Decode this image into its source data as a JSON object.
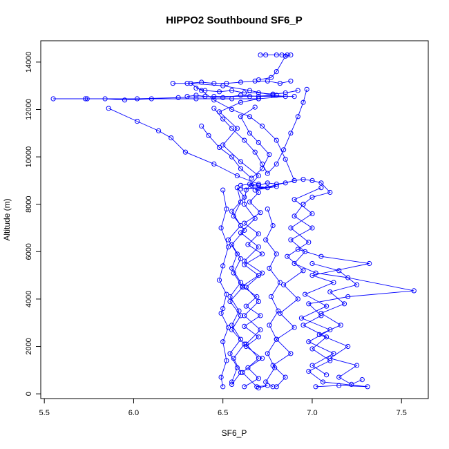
{
  "chart_data": {
    "type": "scatter",
    "title": "HIPPO2 Southbound SF6_P",
    "xlabel": "SF6_P",
    "ylabel": "Altitude (m)",
    "xlim": [
      5.48,
      7.65
    ],
    "ylim": [
      -200,
      14900
    ],
    "x_ticks": [
      5.5,
      6.0,
      6.5,
      7.0,
      7.5
    ],
    "y_ticks": [
      0,
      2000,
      4000,
      6000,
      8000,
      10000,
      12000,
      14000
    ],
    "x_tick_labels": [
      "5.5",
      "6.0",
      "6.5",
      "7.0",
      "7.5"
    ],
    "y_tick_labels": [
      "0",
      "2000",
      "4000",
      "6000",
      "8000",
      "10000",
      "12000",
      "14000"
    ],
    "grid": false,
    "legend": "none",
    "series": [
      {
        "color": "#0000ff",
        "marker": "open-circle",
        "connected": true,
        "points": [
          [
            6.62,
            300
          ],
          [
            6.7,
            650
          ],
          [
            6.64,
            1100
          ],
          [
            6.72,
            1500
          ],
          [
            6.63,
            2000
          ],
          [
            6.7,
            2400
          ],
          [
            6.62,
            2850
          ],
          [
            6.71,
            3300
          ],
          [
            6.63,
            3700
          ],
          [
            6.69,
            4100
          ],
          [
            6.61,
            4550
          ],
          [
            6.7,
            5000
          ],
          [
            6.62,
            5450
          ],
          [
            6.72,
            5900
          ],
          [
            6.64,
            6300
          ],
          [
            6.7,
            6750
          ],
          [
            6.62,
            7200
          ],
          [
            6.71,
            7650
          ],
          [
            6.65,
            8100
          ],
          [
            6.7,
            8500
          ],
          [
            6.66,
            8800
          ],
          [
            6.75,
            8700
          ],
          [
            6.6,
            8650
          ],
          [
            6.8,
            8750
          ],
          [
            6.68,
            8600
          ],
          [
            6.9,
            9000
          ],
          [
            6.85,
            9900
          ],
          [
            6.8,
            10700
          ],
          [
            6.72,
            11300
          ],
          [
            6.65,
            11700
          ],
          [
            6.55,
            12000
          ],
          [
            6.45,
            12400
          ],
          [
            6.38,
            12800
          ],
          [
            6.32,
            13100
          ],
          [
            6.5,
            13000
          ],
          [
            6.65,
            12800
          ],
          [
            6.78,
            12600
          ],
          [
            6.85,
            12550
          ],
          [
            6.7,
            12450
          ],
          [
            6.6,
            12300
          ],
          [
            6.48,
            11900
          ],
          [
            6.58,
            11200
          ],
          [
            6.5,
            10500
          ],
          [
            6.6,
            9800
          ],
          [
            6.7,
            9200
          ],
          [
            6.63,
            8600
          ],
          [
            6.62,
            8000
          ],
          [
            6.68,
            7400
          ],
          [
            6.6,
            6800
          ],
          [
            6.7,
            6200
          ],
          [
            6.62,
            5600
          ],
          [
            6.72,
            5100
          ],
          [
            6.63,
            4500
          ],
          [
            6.7,
            3900
          ],
          [
            6.62,
            3300
          ],
          [
            6.71,
            2700
          ],
          [
            6.63,
            2100
          ],
          [
            6.7,
            1500
          ],
          [
            6.61,
            900
          ],
          [
            6.69,
            300
          ],
          [
            6.75,
            350
          ],
          [
            6.7,
            250
          ]
        ]
      },
      {
        "color": "#0000ff",
        "marker": "open-circle",
        "connected": true,
        "points": [
          [
            6.55,
            400
          ],
          [
            6.6,
            900
          ],
          [
            6.56,
            1500
          ],
          [
            6.62,
            2100
          ],
          [
            6.55,
            2700
          ],
          [
            6.6,
            3300
          ],
          [
            6.54,
            3900
          ],
          [
            6.61,
            4500
          ],
          [
            6.56,
            5100
          ],
          [
            6.6,
            5700
          ],
          [
            6.55,
            6300
          ],
          [
            6.62,
            6900
          ],
          [
            6.56,
            7500
          ],
          [
            6.6,
            8100
          ],
          [
            6.58,
            8700
          ],
          [
            6.62,
            8300
          ],
          [
            6.55,
            7700
          ],
          [
            6.6,
            7100
          ],
          [
            6.53,
            6500
          ],
          [
            6.58,
            5900
          ],
          [
            6.55,
            5300
          ],
          [
            6.6,
            4700
          ],
          [
            6.54,
            4100
          ],
          [
            6.59,
            3500
          ],
          [
            6.55,
            2900
          ],
          [
            6.6,
            2300
          ],
          [
            6.54,
            1700
          ],
          [
            6.58,
            1100
          ],
          [
            6.55,
            500
          ]
        ]
      },
      {
        "color": "#0000ff",
        "marker": "open-circle",
        "connected": true,
        "points": [
          [
            6.7,
            12450
          ],
          [
            6.55,
            12450
          ],
          [
            6.35,
            12450
          ],
          [
            6.1,
            12450
          ],
          [
            5.95,
            12400
          ],
          [
            5.84,
            12450
          ],
          [
            5.73,
            12450
          ],
          [
            5.55,
            12450
          ],
          [
            5.74,
            12450
          ],
          [
            6.02,
            12450
          ],
          [
            6.25,
            12500
          ],
          [
            6.45,
            12550
          ],
          [
            6.65,
            12550
          ],
          [
            6.8,
            12600
          ]
        ]
      },
      {
        "color": "#0000ff",
        "marker": "open-circle",
        "connected": true,
        "points": [
          [
            5.86,
            12050
          ],
          [
            6.02,
            11500
          ],
          [
            6.14,
            11100
          ],
          [
            6.21,
            10800
          ],
          [
            6.29,
            10200
          ],
          [
            6.45,
            9700
          ],
          [
            6.58,
            9200
          ],
          [
            6.7,
            8850
          ]
        ]
      },
      {
        "color": "#0000ff",
        "marker": "open-circle",
        "connected": true,
        "points": [
          [
            6.22,
            13100
          ],
          [
            6.3,
            13100
          ],
          [
            6.38,
            13150
          ],
          [
            6.45,
            13100
          ],
          [
            6.52,
            13100
          ],
          [
            6.6,
            13150
          ],
          [
            6.68,
            13200
          ],
          [
            6.75,
            13200
          ],
          [
            6.82,
            13100
          ],
          [
            6.88,
            13200
          ]
        ]
      },
      {
        "color": "#0000ff",
        "marker": "open-circle",
        "connected": true,
        "points": [
          [
            6.35,
            12900
          ],
          [
            6.4,
            12800
          ],
          [
            6.48,
            12750
          ],
          [
            6.55,
            12800
          ],
          [
            6.62,
            12700
          ],
          [
            6.7,
            12700
          ],
          [
            6.78,
            12650
          ],
          [
            6.85,
            12700
          ],
          [
            6.92,
            12800
          ]
        ]
      },
      {
        "color": "#0000ff",
        "marker": "open-circle",
        "connected": true,
        "points": [
          [
            6.3,
            12550
          ],
          [
            6.35,
            12600
          ],
          [
            6.4,
            12550
          ],
          [
            6.5,
            12500
          ],
          [
            6.6,
            12600
          ],
          [
            6.7,
            12550
          ],
          [
            6.9,
            12550
          ]
        ]
      },
      {
        "color": "#0000ff",
        "marker": "open-circle",
        "connected": true,
        "points": [
          [
            6.71,
            14300
          ],
          [
            6.74,
            14300
          ],
          [
            6.8,
            14300
          ],
          [
            6.83,
            14300
          ],
          [
            6.86,
            14300
          ],
          [
            6.88,
            14300
          ],
          [
            6.85,
            14250
          ],
          [
            6.8,
            13600
          ],
          [
            6.77,
            13350
          ],
          [
            6.7,
            13250
          ]
        ]
      },
      {
        "color": "#0000ff",
        "marker": "open-circle",
        "connected": true,
        "points": [
          [
            6.6,
            8800
          ],
          [
            6.65,
            8850
          ],
          [
            6.7,
            8800
          ],
          [
            6.75,
            8900
          ],
          [
            6.8,
            8850
          ],
          [
            6.85,
            8900
          ],
          [
            6.9,
            9000
          ],
          [
            6.95,
            9050
          ],
          [
            7.0,
            9000
          ],
          [
            7.05,
            8900
          ],
          [
            7.1,
            8500
          ],
          [
            7.0,
            8300
          ],
          [
            6.95,
            8000
          ]
        ]
      },
      {
        "color": "#0000ff",
        "marker": "open-circle",
        "connected": true,
        "points": [
          [
            6.95,
            8000
          ],
          [
            6.9,
            7500
          ],
          [
            7.0,
            7000
          ],
          [
            6.88,
            6500
          ],
          [
            6.96,
            6000
          ],
          [
            6.9,
            5500
          ],
          [
            7.02,
            5100
          ],
          [
            7.2,
            4900
          ],
          [
            7.57,
            4350
          ],
          [
            7.2,
            4100
          ],
          [
            6.98,
            3800
          ],
          [
            7.05,
            3300
          ],
          [
            6.95,
            2900
          ],
          [
            7.08,
            2400
          ],
          [
            7.0,
            1900
          ],
          [
            7.1,
            1400
          ],
          [
            6.98,
            950
          ],
          [
            7.06,
            500
          ],
          [
            7.31,
            300
          ],
          [
            7.15,
            350
          ],
          [
            7.02,
            300
          ]
        ]
      },
      {
        "color": "#0000ff",
        "marker": "open-circle",
        "connected": true,
        "points": [
          [
            6.8,
            300
          ],
          [
            6.85,
            700
          ],
          [
            6.78,
            1200
          ],
          [
            6.88,
            1700
          ],
          [
            6.8,
            2300
          ],
          [
            6.9,
            2800
          ],
          [
            6.82,
            3400
          ],
          [
            6.92,
            4000
          ],
          [
            6.84,
            4600
          ],
          [
            6.95,
            5200
          ],
          [
            6.86,
            5800
          ],
          [
            6.98,
            6400
          ],
          [
            6.88,
            7000
          ],
          [
            7.0,
            7600
          ],
          [
            6.9,
            8200
          ],
          [
            7.05,
            8700
          ]
        ]
      },
      {
        "color": "#0000ff",
        "marker": "open-circle",
        "connected": true,
        "points": [
          [
            7.0,
            5500
          ],
          [
            7.15,
            5200
          ],
          [
            7.25,
            4600
          ],
          [
            7.1,
            4300
          ],
          [
            7.18,
            3800
          ],
          [
            7.05,
            3400
          ],
          [
            7.16,
            2900
          ],
          [
            7.04,
            2500
          ],
          [
            7.2,
            2000
          ],
          [
            7.1,
            1500
          ],
          [
            7.25,
            1200
          ],
          [
            7.15,
            700
          ],
          [
            7.22,
            400
          ],
          [
            7.28,
            600
          ]
        ]
      },
      {
        "color": "#0000ff",
        "marker": "open-circle",
        "connected": true,
        "points": [
          [
            6.92,
            6100
          ],
          [
            7.05,
            5800
          ],
          [
            7.32,
            5500
          ],
          [
            7.0,
            5000
          ],
          [
            7.12,
            4700
          ],
          [
            6.96,
            4200
          ],
          [
            7.08,
            3700
          ],
          [
            6.94,
            3200
          ],
          [
            7.1,
            2700
          ],
          [
            6.98,
            2200
          ],
          [
            7.12,
            1700
          ],
          [
            7.0,
            1200
          ],
          [
            7.08,
            800
          ]
        ]
      },
      {
        "color": "#0000ff",
        "marker": "open-circle",
        "connected": true,
        "points": [
          [
            6.5,
            8600
          ],
          [
            6.52,
            7800
          ],
          [
            6.49,
            7000
          ],
          [
            6.53,
            6200
          ],
          [
            6.5,
            5400
          ],
          [
            6.48,
            4800
          ],
          [
            6.52,
            4200
          ],
          [
            6.5,
            3600
          ],
          [
            6.49,
            3400
          ],
          [
            6.53,
            2800
          ],
          [
            6.5,
            2200
          ],
          [
            6.52,
            1400
          ],
          [
            6.49,
            700
          ],
          [
            6.5,
            300
          ]
        ]
      },
      {
        "color": "#0000ff",
        "marker": "open-circle",
        "connected": true,
        "points": [
          [
            6.45,
            12050
          ],
          [
            6.5,
            11600
          ],
          [
            6.55,
            11200
          ],
          [
            6.62,
            10700
          ],
          [
            6.68,
            10200
          ],
          [
            6.72,
            9700
          ],
          [
            6.75,
            9300
          ],
          [
            6.8,
            9700
          ],
          [
            6.84,
            10300
          ],
          [
            6.88,
            11000
          ],
          [
            6.92,
            11700
          ],
          [
            6.95,
            12300
          ],
          [
            6.97,
            12850
          ]
        ]
      },
      {
        "color": "#0000ff",
        "marker": "open-circle",
        "connected": true,
        "points": [
          [
            6.38,
            11300
          ],
          [
            6.42,
            10900
          ],
          [
            6.48,
            10400
          ],
          [
            6.55,
            10000
          ],
          [
            6.6,
            9500
          ],
          [
            6.66,
            9100
          ],
          [
            6.72,
            9500
          ],
          [
            6.76,
            10100
          ],
          [
            6.7,
            10600
          ],
          [
            6.65,
            11000
          ],
          [
            6.6,
            11700
          ],
          [
            6.68,
            12100
          ]
        ]
      },
      {
        "color": "#0000ff",
        "marker": "open-circle",
        "connected": true,
        "points": [
          [
            6.75,
            7800
          ],
          [
            6.78,
            7100
          ],
          [
            6.74,
            6500
          ],
          [
            6.8,
            5900
          ],
          [
            6.76,
            5300
          ],
          [
            6.82,
            4700
          ],
          [
            6.77,
            4100
          ],
          [
            6.81,
            3500
          ],
          [
            6.76,
            2900
          ],
          [
            6.8,
            2300
          ],
          [
            6.75,
            1700
          ],
          [
            6.79,
            1100
          ],
          [
            6.74,
            500
          ],
          [
            6.78,
            300
          ]
        ]
      }
    ]
  }
}
